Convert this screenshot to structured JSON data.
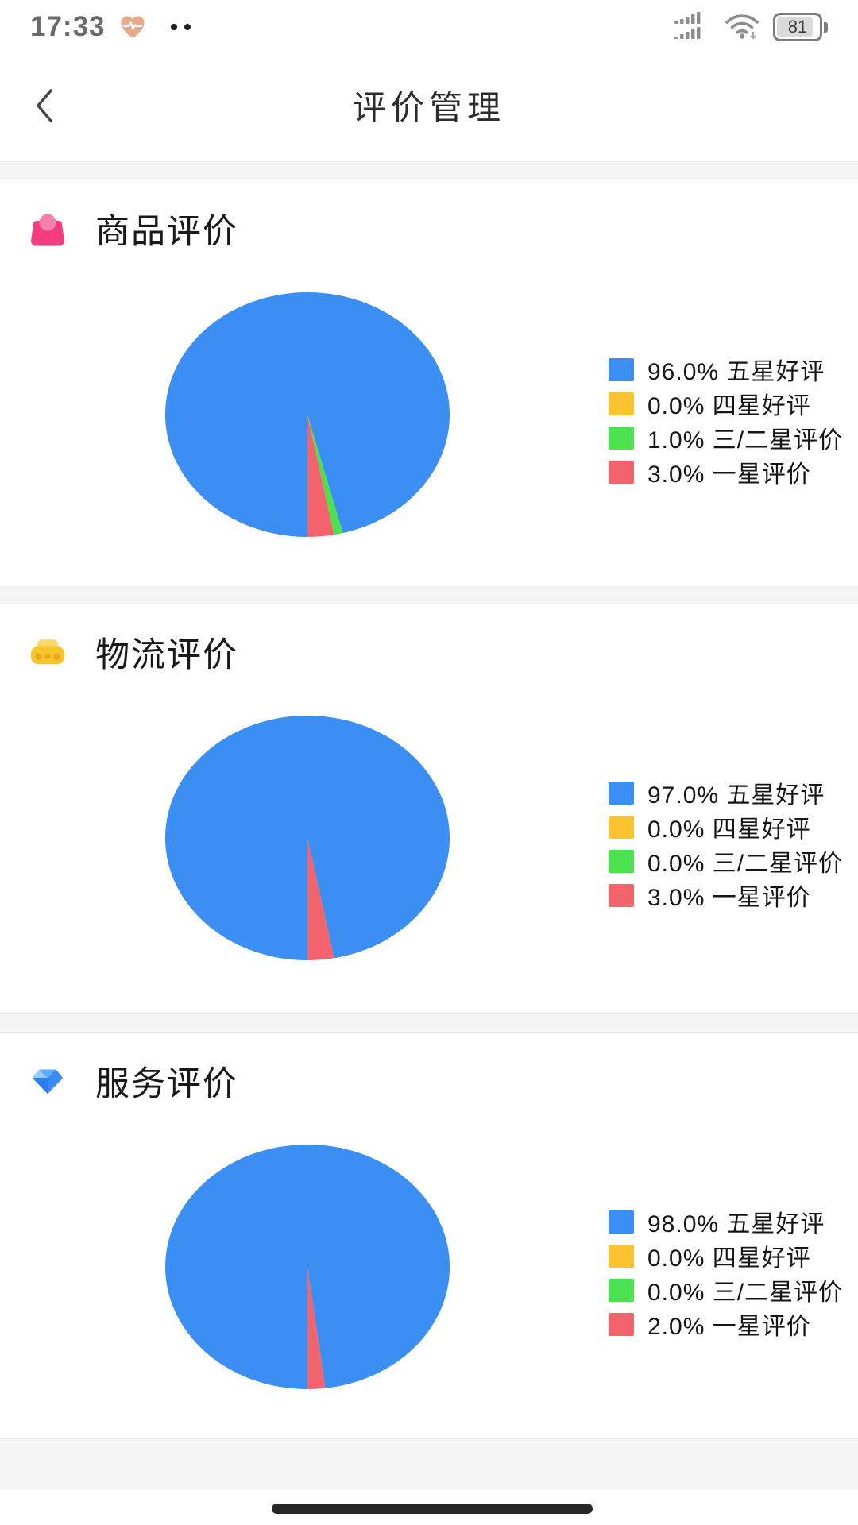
{
  "status_bar": {
    "time": "17:33",
    "battery": "81"
  },
  "nav": {
    "title": "评价管理",
    "back_icon": "chevron-left"
  },
  "sections": [
    {
      "title": "商品评价",
      "icon": "shopping-bag-icon",
      "legend": [
        "96.0% 五星好评",
        "0.0% 四星好评",
        "1.0% 三/二星评价",
        "3.0% 一星评价"
      ]
    },
    {
      "title": "物流评价",
      "icon": "delivery-car-icon",
      "legend": [
        "97.0% 五星好评",
        "0.0% 四星好评",
        "0.0% 三/二星评价",
        "3.0% 一星评价"
      ]
    },
    {
      "title": "服务评价",
      "icon": "service-gem-icon",
      "legend": [
        "98.0% 五星好评",
        "0.0% 四星好评",
        "0.0% 三/二星评价",
        "2.0% 一星评价"
      ]
    }
  ],
  "chart_data": [
    {
      "type": "pie",
      "title": "商品评价",
      "labels": [
        "五星好评",
        "四星好评",
        "三/二星评价",
        "一星评价"
      ],
      "values": [
        96.0,
        0.0,
        1.0,
        3.0
      ],
      "unit": "%",
      "colors": [
        "#3b8ef2",
        "#fbc32f",
        "#4ce24f",
        "#f2646b"
      ],
      "legend_position": "right",
      "start_angle": "bottom",
      "direction": "clockwise"
    },
    {
      "type": "pie",
      "title": "物流评价",
      "labels": [
        "五星好评",
        "四星好评",
        "三/二星评价",
        "一星评价"
      ],
      "values": [
        97.0,
        0.0,
        0.0,
        3.0
      ],
      "unit": "%",
      "colors": [
        "#3b8ef2",
        "#fbc32f",
        "#4ce24f",
        "#f2646b"
      ],
      "legend_position": "right",
      "start_angle": "bottom",
      "direction": "clockwise"
    },
    {
      "type": "pie",
      "title": "服务评价",
      "labels": [
        "五星好评",
        "四星好评",
        "三/二星评价",
        "一星评价"
      ],
      "values": [
        98.0,
        0.0,
        0.0,
        2.0
      ],
      "unit": "%",
      "colors": [
        "#3b8ef2",
        "#fbc32f",
        "#4ce24f",
        "#f2646b"
      ],
      "legend_position": "right",
      "start_angle": "bottom",
      "direction": "clockwise"
    }
  ]
}
